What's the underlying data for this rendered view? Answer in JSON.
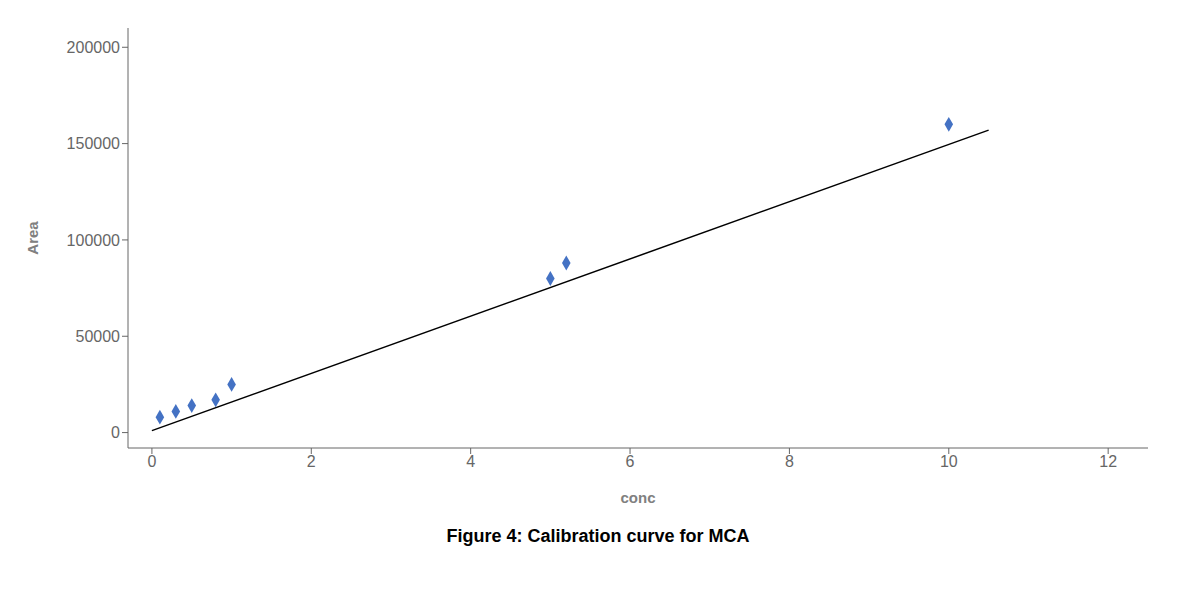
{
  "chart_data": {
    "type": "scatter",
    "title": "Figure 4: Calibration curve for MCA",
    "x_label": "conc",
    "y_label": "Area",
    "x": [
      0.1,
      0.3,
      0.5,
      0.8,
      1.0,
      5.0,
      5.2,
      10.0
    ],
    "values": [
      8000,
      11000,
      14000,
      17000,
      25000,
      80000,
      88000,
      160000
    ],
    "color": "#4472C4",
    "marker": "diamond",
    "trendline": {
      "x": [
        0.0,
        10.5
      ],
      "values": [
        1000,
        157000
      ],
      "color": "#000000"
    },
    "xlim": [
      -0.3,
      12.5
    ],
    "ylim": [
      -8000,
      210000
    ],
    "xticks": [
      0,
      2,
      4,
      6,
      8,
      10,
      12
    ],
    "yticks": [
      0,
      50000,
      100000,
      150000,
      200000
    ],
    "grid": false
  }
}
